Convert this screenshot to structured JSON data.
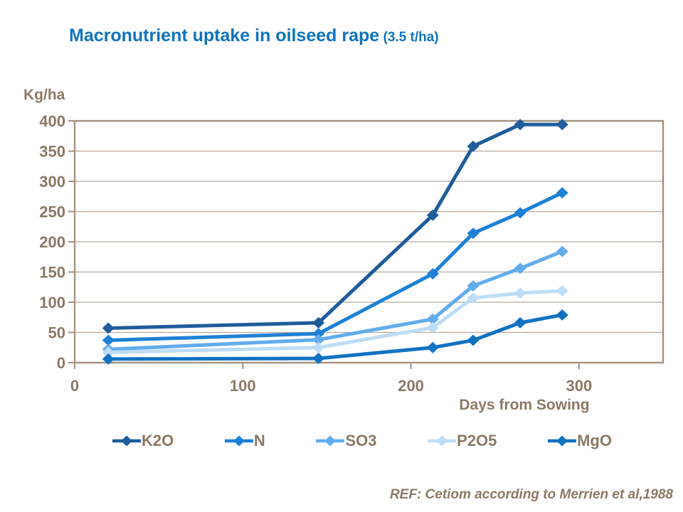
{
  "title": {
    "main": "Macronutrient uptake in oilseed rape",
    "suffix": " (3.5 t/ha)"
  },
  "colors": {
    "title": "#1173BE",
    "axis_text": "#8A7A66",
    "gridline": "#B7AA9B",
    "plot_border": "#A29280"
  },
  "chart_data": {
    "type": "line",
    "title": "Macronutrient uptake in oilseed rape (3.5 t/ha)",
    "xlabel": "Days from Sowing",
    "ylabel": "Kg/ha",
    "x": [
      20,
      145,
      213,
      237,
      265,
      290
    ],
    "series": [
      {
        "name": "K2O",
        "color": "#1F5C9A",
        "values": [
          57,
          66,
          244,
          358,
          394,
          394
        ]
      },
      {
        "name": "N",
        "color": "#1E81D6",
        "values": [
          37,
          48,
          147,
          214,
          248,
          281
        ]
      },
      {
        "name": "SO3",
        "color": "#62ACEC",
        "values": [
          22,
          38,
          72,
          127,
          156,
          184
        ]
      },
      {
        "name": "P2O5",
        "color": "#BDDCF5",
        "values": [
          17,
          25,
          58,
          107,
          115,
          119
        ]
      },
      {
        "name": "MgO",
        "color": "#1272C2",
        "values": [
          6,
          7,
          25,
          37,
          66,
          79
        ]
      }
    ],
    "xlim": [
      0,
      350
    ],
    "ylim": [
      0,
      400
    ],
    "x_ticks": [
      0,
      100,
      200,
      300
    ],
    "y_ticks": [
      0,
      50,
      100,
      150,
      200,
      250,
      300,
      350,
      400
    ],
    "grid": "horizontal",
    "legend_position": "bottom",
    "marker": "diamond"
  },
  "footer": {
    "ref": "REF: Cetiom according to Merrien et al,1988"
  }
}
